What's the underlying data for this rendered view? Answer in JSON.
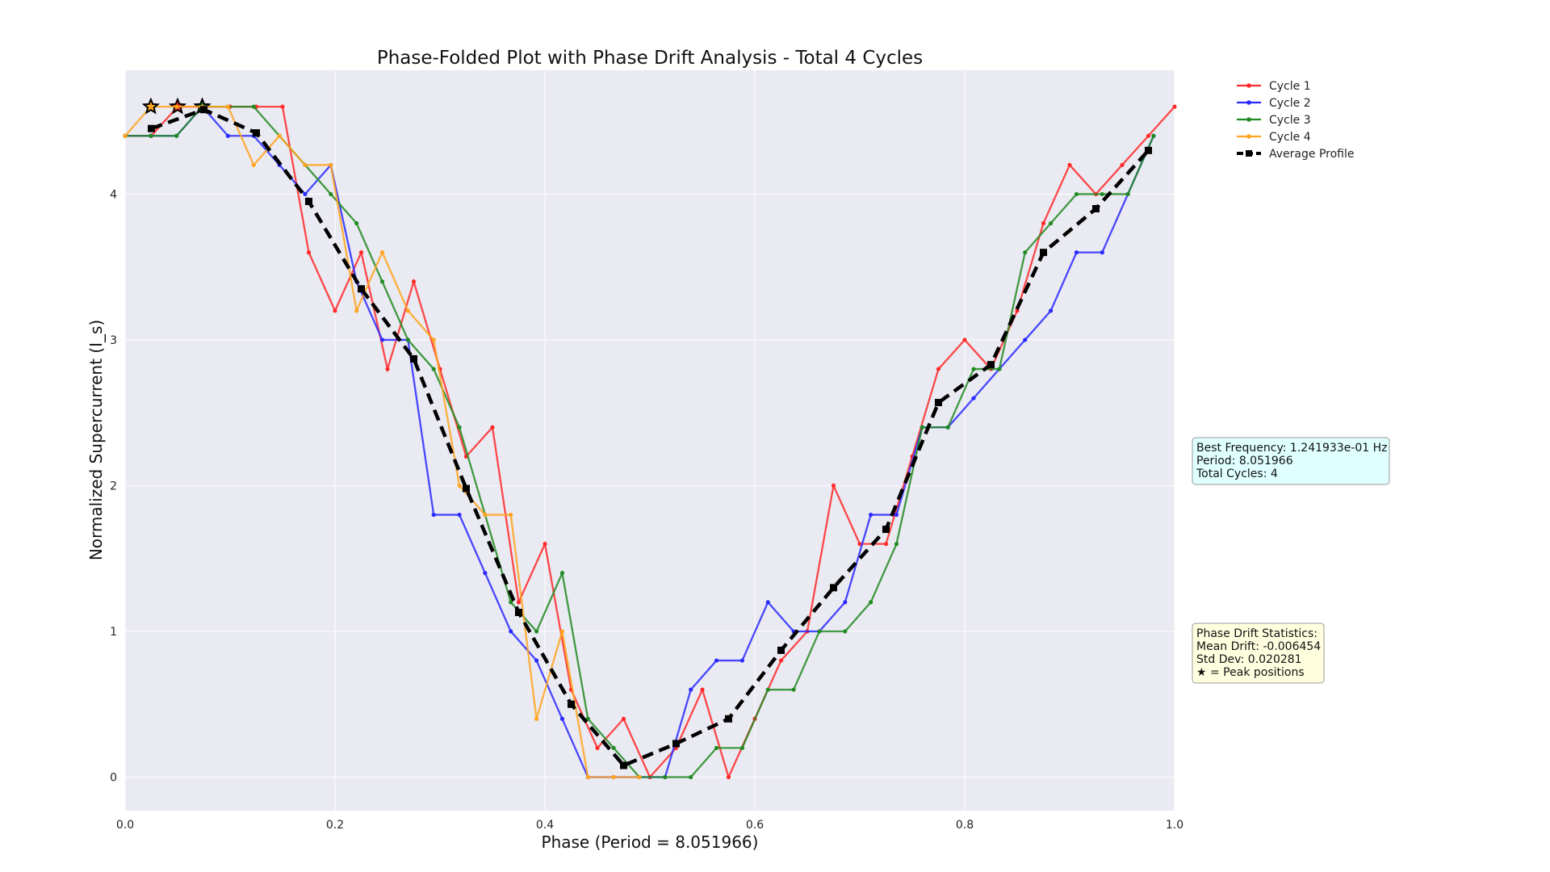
{
  "chart_data": {
    "type": "line",
    "title": "Phase-Folded Plot with Phase Drift Analysis - Total 4 Cycles",
    "xlabel": "Phase (Period = 8.051966)",
    "ylabel": "Normalized Supercurrent (I_s)",
    "xlim": [
      0.0,
      1.0
    ],
    "ylim": [
      -0.23,
      4.85
    ],
    "x_ticks": [
      "0.0",
      "0.2",
      "0.4",
      "0.6",
      "0.8",
      "1.0"
    ],
    "x_tick_values": [
      0.0,
      0.2,
      0.4,
      0.6,
      0.8,
      1.0
    ],
    "y_ticks": [
      "0",
      "1",
      "2",
      "3",
      "4"
    ],
    "y_tick_values": [
      0,
      1,
      2,
      3,
      4
    ],
    "grid": true,
    "legend_position": "upper right, outside plot",
    "series": [
      {
        "name": "Cycle 1",
        "color": "#ff2a2a",
        "x": [
          0.0,
          0.025,
          0.05,
          0.075,
          0.1,
          0.125,
          0.15,
          0.175,
          0.2,
          0.225,
          0.25,
          0.275,
          0.3,
          0.325,
          0.35,
          0.375,
          0.4,
          0.425,
          0.45,
          0.475,
          0.5,
          0.525,
          0.55,
          0.575,
          0.6,
          0.625,
          0.65,
          0.675,
          0.7,
          0.725,
          0.75,
          0.775,
          0.8,
          0.825,
          0.85,
          0.875,
          0.9,
          0.925,
          0.95,
          0.975,
          1.0
        ],
        "y": [
          4.4,
          4.4,
          4.6,
          4.6,
          4.6,
          4.6,
          4.6,
          3.6,
          3.2,
          3.6,
          2.8,
          3.4,
          2.8,
          2.2,
          2.4,
          1.2,
          1.6,
          0.6,
          0.2,
          0.4,
          0.0,
          0.2,
          0.6,
          0.0,
          0.4,
          0.8,
          1.0,
          2.0,
          1.6,
          1.6,
          2.2,
          2.8,
          3.0,
          2.8,
          3.2,
          3.8,
          4.2,
          4.0,
          4.2,
          4.4,
          4.6
        ],
        "peak": [
          0.05,
          4.6
        ]
      },
      {
        "name": "Cycle 2",
        "color": "#2a2aff",
        "x": [
          0.0,
          0.0245,
          0.049,
          0.0735,
          0.098,
          0.1225,
          0.147,
          0.1715,
          0.196,
          0.2205,
          0.245,
          0.2695,
          0.294,
          0.3185,
          0.343,
          0.3675,
          0.392,
          0.4165,
          0.441,
          0.4655,
          0.49,
          0.5145,
          0.539,
          0.5635,
          0.588,
          0.6125,
          0.637,
          0.6615,
          0.686,
          0.7105,
          0.735,
          0.7595,
          0.784,
          0.8085,
          0.833,
          0.8575,
          0.882,
          0.9065,
          0.931,
          0.9555,
          0.98
        ],
        "y": [
          4.4,
          4.4,
          4.4,
          4.6,
          4.4,
          4.4,
          4.2,
          4.0,
          4.2,
          3.4,
          3.0,
          3.0,
          1.8,
          1.8,
          1.4,
          1.0,
          0.8,
          0.4,
          0.0,
          0.0,
          0.0,
          0.0,
          0.6,
          0.8,
          0.8,
          1.2,
          1.0,
          1.0,
          1.2,
          1.8,
          1.8,
          2.4,
          2.4,
          2.6,
          2.8,
          3.0,
          3.2,
          3.6,
          3.6,
          4.0,
          4.4
        ],
        "peak": [
          0.0735,
          4.6
        ]
      },
      {
        "name": "Cycle 3",
        "color": "#228b22",
        "x": [
          0.0,
          0.0245,
          0.049,
          0.0735,
          0.098,
          0.1225,
          0.147,
          0.1715,
          0.196,
          0.2205,
          0.245,
          0.2695,
          0.294,
          0.3185,
          0.343,
          0.3675,
          0.392,
          0.4165,
          0.441,
          0.4655,
          0.49,
          0.5145,
          0.539,
          0.5635,
          0.588,
          0.6125,
          0.637,
          0.6615,
          0.686,
          0.7105,
          0.735,
          0.7595,
          0.784,
          0.8085,
          0.833,
          0.8575,
          0.882,
          0.9065,
          0.931,
          0.9555,
          0.98
        ],
        "y": [
          4.4,
          4.4,
          4.4,
          4.6,
          4.6,
          4.6,
          4.4,
          4.2,
          4.0,
          3.8,
          3.4,
          3.0,
          2.8,
          2.4,
          1.8,
          1.2,
          1.0,
          1.4,
          0.4,
          0.2,
          0.0,
          0.0,
          0.0,
          0.2,
          0.2,
          0.6,
          0.6,
          1.0,
          1.0,
          1.2,
          1.6,
          2.4,
          2.4,
          2.8,
          2.8,
          3.6,
          3.8,
          4.0,
          4.0,
          4.0,
          4.4
        ],
        "peak": [
          0.0735,
          4.6
        ]
      },
      {
        "name": "Cycle 4",
        "color": "#ffa51f",
        "x": [
          0.0,
          0.0245,
          0.049,
          0.0735,
          0.098,
          0.1225,
          0.147,
          0.1715,
          0.196,
          0.2205,
          0.245,
          0.2695,
          0.294,
          0.3185,
          0.343,
          0.3675,
          0.392,
          0.4165,
          0.441,
          0.4655,
          0.49
        ],
        "y": [
          4.4,
          4.6,
          4.6,
          4.6,
          4.6,
          4.2,
          4.4,
          4.2,
          4.2,
          3.2,
          3.6,
          3.2,
          3.0,
          2.0,
          1.8,
          1.8,
          0.4,
          1.0,
          0.0,
          0.0,
          0.0
        ],
        "peak": [
          0.0245,
          4.6
        ]
      },
      {
        "name": "Average Profile",
        "color": "#000000",
        "x": [
          0.025,
          0.075,
          0.125,
          0.175,
          0.225,
          0.275,
          0.325,
          0.375,
          0.425,
          0.475,
          0.525,
          0.575,
          0.625,
          0.675,
          0.725,
          0.775,
          0.825,
          0.875,
          0.925,
          0.975
        ],
        "y": [
          4.45,
          4.58,
          4.42,
          3.95,
          3.35,
          2.87,
          1.98,
          1.13,
          0.5,
          0.08,
          0.23,
          0.4,
          0.87,
          1.3,
          1.7,
          2.57,
          2.83,
          3.6,
          3.9,
          4.3
        ]
      }
    ],
    "info_box": {
      "lines": [
        "Best Frequency: 1.241933e-01 Hz",
        "Period: 8.051966",
        "Total Cycles: 4"
      ],
      "background": "#e0ffff"
    },
    "drift_box": {
      "lines": [
        "Phase Drift Statistics:",
        "Mean Drift: -0.006454",
        "Std Dev: 0.020281",
        "★ = Peak positions"
      ],
      "background": "#ffffe0"
    },
    "plot_background": "#eaeaf2"
  }
}
